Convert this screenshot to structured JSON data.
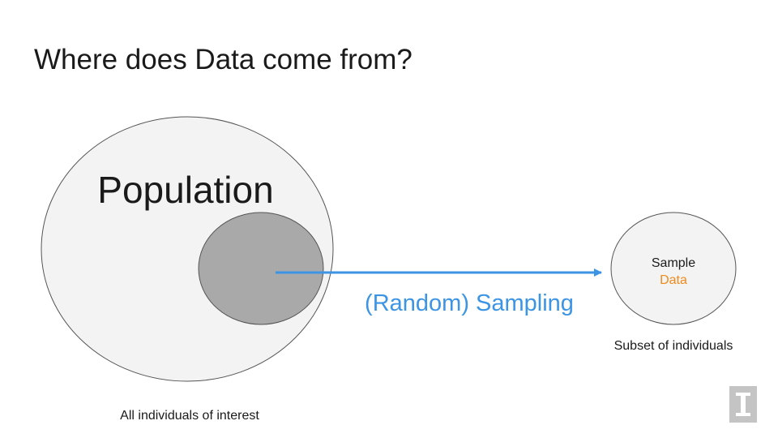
{
  "slide": {
    "title": "Where does Data come from?"
  },
  "diagram": {
    "population_label": "Population",
    "population_caption": "All individuals of interest",
    "arrow_label": "(Random) Sampling",
    "sample_label": "Sample",
    "sample_data_label": "Data",
    "sample_caption": "Subset of individuals"
  },
  "colors": {
    "population_fill": "#f3f3f3",
    "subset_fill": "#a9a9a9",
    "arrow": "#3c94e5",
    "data_text": "#ef8a1c",
    "text": "#1a1a1a"
  }
}
